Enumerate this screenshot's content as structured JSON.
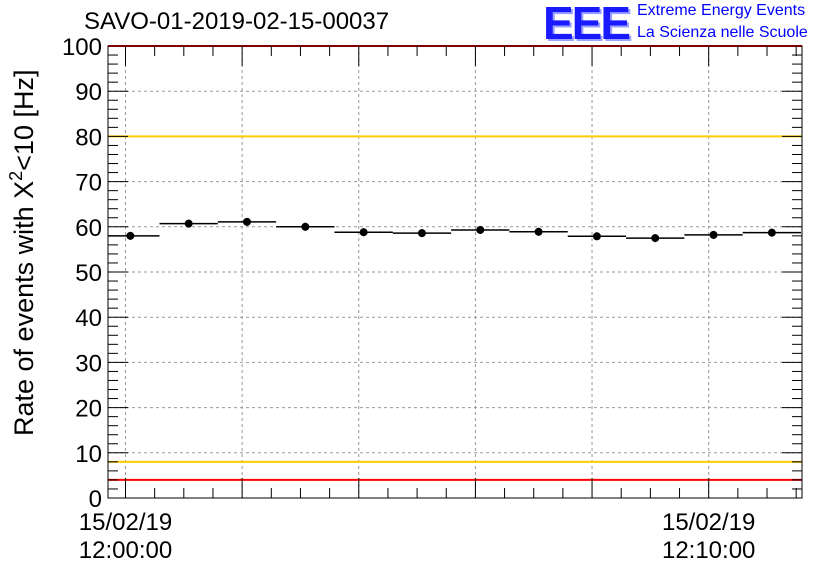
{
  "title": "SAVO-01-2019-02-15-00037",
  "logo": {
    "mark": "EEE",
    "line1": "Extreme Energy Events",
    "line2": "La Scienza nelle Scuole"
  },
  "chart_data": {
    "type": "scatter",
    "title": "SAVO-01-2019-02-15-00037",
    "ylabel": "Rate of events with X",
    "ylabel_sup": "2",
    "ylabel_suffix": "<10 [Hz]",
    "xlabel": "",
    "ylim": [
      0,
      100
    ],
    "xlim_minutes": [
      -0.3,
      11.6
    ],
    "y_ticks": [
      "0",
      "10",
      "20",
      "30",
      "40",
      "50",
      "60",
      "70",
      "80",
      "90",
      "100"
    ],
    "x_tick_labels": [
      {
        "minute": 0,
        "date": "15/02/19",
        "time": "12:00:00"
      },
      {
        "minute": 10,
        "date": "15/02/19",
        "time": "12:10:00"
      }
    ],
    "grid": true,
    "series": [
      {
        "name": "rate",
        "x_minutes": [
          0.0833,
          1.0833,
          2.0833,
          3.0833,
          4.0833,
          5.0833,
          6.0833,
          7.0833,
          8.0833,
          9.0833,
          10.0833,
          11.0833
        ],
        "values": [
          58.0,
          60.7,
          61.1,
          60.0,
          58.8,
          58.6,
          59.3,
          58.9,
          57.9,
          57.5,
          58.2,
          58.7
        ],
        "bin_width_minutes": 1.0
      }
    ],
    "reference_lines": [
      {
        "name": "upper-red-line",
        "y": 100,
        "color": "#ff0000"
      },
      {
        "name": "upper-yellow-line",
        "y": 80,
        "color": "#ffcc00"
      },
      {
        "name": "lower-yellow-line",
        "y": 8,
        "color": "#ffcc00"
      },
      {
        "name": "lower-red-line",
        "y": 4,
        "color": "#ff0000"
      }
    ]
  }
}
